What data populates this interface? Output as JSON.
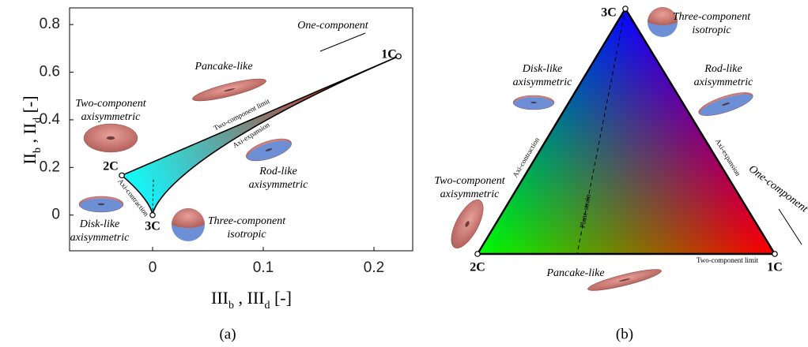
{
  "chart_data": [
    {
      "type": "lumley",
      "xlim": [
        -0.075,
        0.235
      ],
      "ylim": [
        -0.15,
        0.87
      ],
      "xticks": [
        0,
        0.1,
        0.2
      ],
      "yticks": [
        0,
        0.2,
        0.4,
        0.6,
        0.8
      ],
      "x_label": [
        "III",
        "b",
        " , III",
        "d",
        " [-]"
      ],
      "y_label": [
        "II",
        "b",
        " , II",
        "d",
        " [-]"
      ],
      "points": [
        {
          "label": "1C",
          "x": 0.2222,
          "y": 0.6667
        },
        {
          "label": "2C",
          "x": -0.0278,
          "y": 0.1667
        },
        {
          "label": "3C",
          "x": 0,
          "y": 0
        }
      ],
      "annotations": [
        [
          "One-component"
        ],
        [
          "Pancake-like"
        ],
        [
          "Two-component",
          "axisymmetric"
        ],
        [
          "Two-component limit"
        ],
        [
          "Axi-expansion"
        ],
        [
          "Rod-like",
          "axisymmetric"
        ],
        [
          "Axi-contraction"
        ],
        [
          "Disk-like",
          "axisymmetric"
        ],
        [
          "Three-component",
          "isotropic"
        ]
      ],
      "panel_label": "(a)"
    },
    {
      "type": "barycentric",
      "vertices": [
        {
          "label": "3C",
          "color": "#0000ff"
        },
        {
          "label": "2C",
          "color": "#00ff00"
        },
        {
          "label": "1C",
          "color": "#ff0000"
        }
      ],
      "annotations": [
        [
          "Three-component",
          "isotropic"
        ],
        [
          "Disk-like",
          "axisymmetric"
        ],
        [
          "Rod-like",
          "axisymmetric"
        ],
        [
          "Axi-contraction"
        ],
        [
          "Axi-expansion"
        ],
        [
          "Two-component",
          "axisymmetric"
        ],
        [
          "One-component"
        ],
        [
          "Plane-strain"
        ],
        [
          "Pancake-like"
        ],
        [
          "Two-component limit"
        ]
      ],
      "panel_label": "(b)"
    }
  ]
}
